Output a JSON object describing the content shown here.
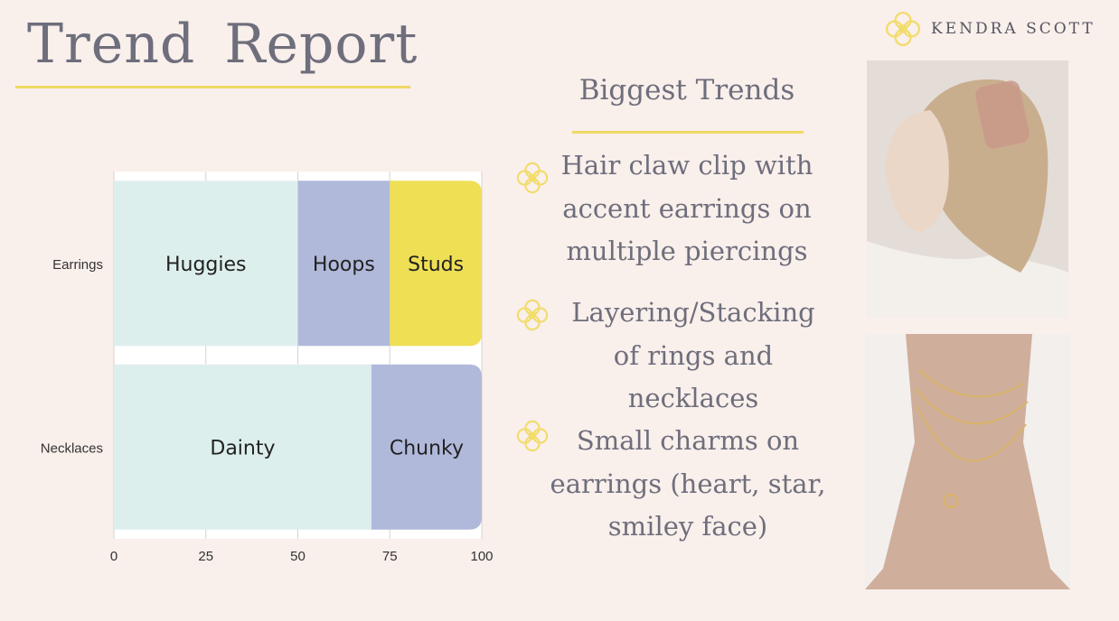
{
  "page": {
    "title": "Trend Report",
    "brand": {
      "name": "KENDRA SCOTT",
      "logo_icon": "kendra-scott-flower-icon"
    }
  },
  "colors": {
    "background": "#f9efeb",
    "accent_yellow": "#efd964",
    "text_gray": "#6e6e7c",
    "bar_mint": "#ddefed",
    "bar_lavender": "#b1b9da",
    "bar_yellow": "#efdf55",
    "logo_yellow": "#f2dc6a"
  },
  "chart_data": {
    "type": "bar",
    "orientation": "horizontal",
    "stacked": true,
    "title": "",
    "xlabel": "",
    "ylabel": "",
    "xlim": [
      0,
      100
    ],
    "x_ticks": [
      0,
      25,
      50,
      75,
      100
    ],
    "grid": true,
    "legend": "none",
    "categories": [
      "Earrings",
      "Necklaces"
    ],
    "bars": [
      {
        "category": "Earrings",
        "segments": [
          {
            "label": "Huggies",
            "value": 50,
            "color": "#ddefed"
          },
          {
            "label": "Hoops",
            "value": 25,
            "color": "#b1b9da"
          },
          {
            "label": "Studs",
            "value": 25,
            "color": "#efdf55"
          }
        ]
      },
      {
        "category": "Necklaces",
        "segments": [
          {
            "label": "Dainty",
            "value": 70,
            "color": "#ddefed"
          },
          {
            "label": "Chunky",
            "value": 30,
            "color": "#b1b9da"
          }
        ]
      }
    ]
  },
  "trends": {
    "heading": "Biggest Trends",
    "bullet_icon": "kendra-scott-flower-icon",
    "items": [
      {
        "lines": [
          "Hair claw clip with",
          "accent earrings on",
          "multiple piercings"
        ]
      },
      {
        "lines": [
          "Layering/Stacking",
          "of rings and",
          "necklaces"
        ]
      },
      {
        "lines": [
          "Small charms on",
          "earrings (heart, star,",
          "smiley face)"
        ]
      }
    ]
  },
  "photos": {
    "top_icon": "woman-hair-claw-clip-photo",
    "bottom_icon": "layered-gold-necklaces-photo"
  }
}
